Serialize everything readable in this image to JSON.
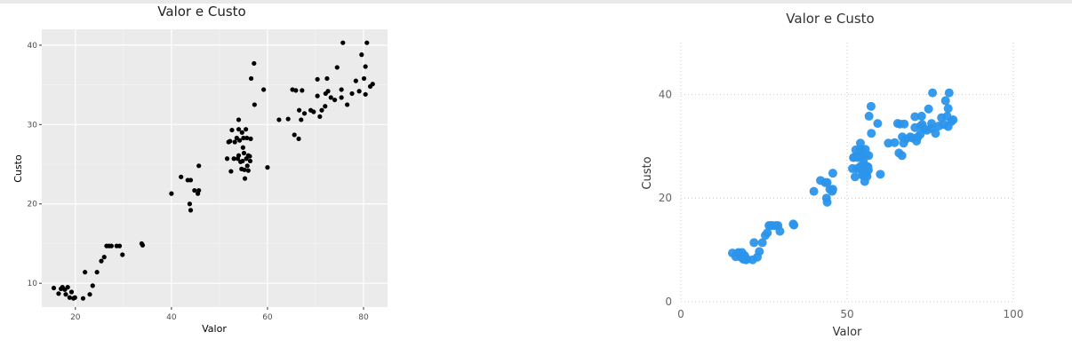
{
  "chart_data": [
    {
      "type": "scatter",
      "style": "ggplot",
      "title": "Valor e Custo",
      "xlabel": "Valor",
      "ylabel": "Custo",
      "xlim": [
        13,
        85
      ],
      "ylim": [
        7,
        42
      ],
      "xticks": [
        20,
        40,
        60,
        80
      ],
      "yticks": [
        10,
        20,
        30,
        40
      ],
      "grid": true,
      "point_color": "#000000",
      "panel_color": "#ebebeb",
      "points": [
        [
          15.5,
          9.4
        ],
        [
          16.5,
          8.7
        ],
        [
          17,
          9.3
        ],
        [
          17.3,
          9.5
        ],
        [
          17.8,
          9.2
        ],
        [
          18,
          8.6
        ],
        [
          18.4,
          9.5
        ],
        [
          18.8,
          8.2
        ],
        [
          19.2,
          8.9
        ],
        [
          19.6,
          8.1
        ],
        [
          19.9,
          8.2
        ],
        [
          21.6,
          8.1
        ],
        [
          22,
          11.4
        ],
        [
          23,
          8.6
        ],
        [
          23.6,
          9.7
        ],
        [
          24.5,
          11.4
        ],
        [
          25.4,
          12.8
        ],
        [
          26,
          13.3
        ],
        [
          26.5,
          14.7
        ],
        [
          27,
          14.7
        ],
        [
          27.5,
          14.7
        ],
        [
          28.6,
          14.7
        ],
        [
          29.2,
          14.7
        ],
        [
          29.8,
          13.6
        ],
        [
          33.8,
          15
        ],
        [
          34,
          14.8
        ],
        [
          40,
          21.3
        ],
        [
          42,
          23.4
        ],
        [
          43.4,
          23
        ],
        [
          43.8,
          20
        ],
        [
          44,
          23
        ],
        [
          44,
          19.2
        ],
        [
          44.8,
          21.7
        ],
        [
          45.5,
          21.3
        ],
        [
          45.7,
          21.7
        ],
        [
          45.7,
          24.8
        ],
        [
          51.6,
          25.7
        ],
        [
          51.9,
          27.8
        ],
        [
          52.2,
          27.9
        ],
        [
          52.4,
          24.1
        ],
        [
          52.6,
          29.3
        ],
        [
          53,
          25.7
        ],
        [
          53.2,
          27.8
        ],
        [
          53.6,
          28.3
        ],
        [
          53.8,
          25.7
        ],
        [
          54,
          29.4
        ],
        [
          54,
          30.6
        ],
        [
          54,
          26.1
        ],
        [
          54.2,
          28
        ],
        [
          54.4,
          25.3
        ],
        [
          54.6,
          24.4
        ],
        [
          54.7,
          29
        ],
        [
          54.8,
          25.4
        ],
        [
          54.9,
          27.1
        ],
        [
          55,
          28.3
        ],
        [
          55.1,
          26.4
        ],
        [
          55.2,
          24.3
        ],
        [
          55.3,
          23.2
        ],
        [
          55.5,
          29.4
        ],
        [
          55.6,
          25.7
        ],
        [
          55.7,
          28.3
        ],
        [
          55.8,
          24.8
        ],
        [
          56,
          24.2
        ],
        [
          56,
          26.1
        ],
        [
          56.3,
          26
        ],
        [
          56.4,
          25.4
        ],
        [
          56.5,
          28.2
        ],
        [
          56.6,
          35.8
        ],
        [
          57.2,
          37.7
        ],
        [
          57.3,
          32.5
        ],
        [
          59.2,
          34.4
        ],
        [
          60,
          24.6
        ],
        [
          62.4,
          30.6
        ],
        [
          64.3,
          30.7
        ],
        [
          65.2,
          34.4
        ],
        [
          65.6,
          28.7
        ],
        [
          65.9,
          34.3
        ],
        [
          66.5,
          28.2
        ],
        [
          66.6,
          31.8
        ],
        [
          67,
          30.6
        ],
        [
          67.2,
          34.3
        ],
        [
          67.7,
          31.4
        ],
        [
          69,
          31.8
        ],
        [
          69.6,
          31.6
        ],
        [
          70.4,
          33.6
        ],
        [
          70.4,
          35.7
        ],
        [
          70.9,
          31
        ],
        [
          71.3,
          31.8
        ],
        [
          72,
          32.3
        ],
        [
          72.1,
          33.9
        ],
        [
          72.4,
          35.8
        ],
        [
          72.6,
          34.2
        ],
        [
          73.2,
          33.4
        ],
        [
          74,
          33.1
        ],
        [
          74.5,
          37.2
        ],
        [
          75.4,
          33.4
        ],
        [
          75.4,
          34.4
        ],
        [
          75.7,
          40.3
        ],
        [
          76.6,
          32.5
        ],
        [
          77.6,
          33.9
        ],
        [
          78.4,
          35.5
        ],
        [
          79.1,
          34.2
        ],
        [
          79.6,
          38.8
        ],
        [
          80.1,
          35.8
        ],
        [
          80.4,
          37.3
        ],
        [
          80.4,
          33.8
        ],
        [
          80.7,
          40.3
        ],
        [
          81.4,
          34.8
        ],
        [
          81.9,
          35.1
        ]
      ]
    },
    {
      "type": "scatter",
      "style": "powerbi",
      "title": "Valor e Custo",
      "xlabel": "Valor",
      "ylabel": "Custo",
      "xlim": [
        0,
        100
      ],
      "ylim": [
        0,
        50
      ],
      "xticks": [
        0,
        50,
        100
      ],
      "yticks": [
        0,
        20,
        40
      ],
      "grid": true,
      "point_color": "#2b95ec",
      "points": [
        [
          15.5,
          9.4
        ],
        [
          16.5,
          8.7
        ],
        [
          17,
          9.3
        ],
        [
          17.3,
          9.5
        ],
        [
          17.8,
          9.2
        ],
        [
          18,
          8.6
        ],
        [
          18.4,
          9.5
        ],
        [
          18.8,
          8.2
        ],
        [
          19.2,
          8.9
        ],
        [
          19.6,
          8.1
        ],
        [
          19.9,
          8.2
        ],
        [
          21.6,
          8.1
        ],
        [
          22,
          11.4
        ],
        [
          23,
          8.6
        ],
        [
          23.6,
          9.7
        ],
        [
          24.5,
          11.4
        ],
        [
          25.4,
          12.8
        ],
        [
          26,
          13.3
        ],
        [
          26.5,
          14.7
        ],
        [
          27,
          14.7
        ],
        [
          27.5,
          14.7
        ],
        [
          28.6,
          14.7
        ],
        [
          29.2,
          14.7
        ],
        [
          29.8,
          13.6
        ],
        [
          33.8,
          15
        ],
        [
          34,
          14.8
        ],
        [
          40,
          21.3
        ],
        [
          42,
          23.4
        ],
        [
          43.4,
          23
        ],
        [
          43.8,
          20
        ],
        [
          44,
          23
        ],
        [
          44,
          19.2
        ],
        [
          44.8,
          21.7
        ],
        [
          45.5,
          21.3
        ],
        [
          45.7,
          21.7
        ],
        [
          45.7,
          24.8
        ],
        [
          51.6,
          25.7
        ],
        [
          51.9,
          27.8
        ],
        [
          52.2,
          27.9
        ],
        [
          52.4,
          24.1
        ],
        [
          52.6,
          29.3
        ],
        [
          53,
          25.7
        ],
        [
          53.2,
          27.8
        ],
        [
          53.6,
          28.3
        ],
        [
          53.8,
          25.7
        ],
        [
          54,
          29.4
        ],
        [
          54,
          30.6
        ],
        [
          54,
          26.1
        ],
        [
          54.2,
          28
        ],
        [
          54.4,
          25.3
        ],
        [
          54.6,
          24.4
        ],
        [
          54.7,
          29
        ],
        [
          54.8,
          25.4
        ],
        [
          54.9,
          27.1
        ],
        [
          55,
          28.3
        ],
        [
          55.1,
          26.4
        ],
        [
          55.2,
          24.3
        ],
        [
          55.3,
          23.2
        ],
        [
          55.5,
          29.4
        ],
        [
          55.6,
          25.7
        ],
        [
          55.7,
          28.3
        ],
        [
          55.8,
          24.8
        ],
        [
          56,
          24.2
        ],
        [
          56,
          26.1
        ],
        [
          56.3,
          26
        ],
        [
          56.4,
          25.4
        ],
        [
          56.5,
          28.2
        ],
        [
          56.6,
          35.8
        ],
        [
          57.2,
          37.7
        ],
        [
          57.3,
          32.5
        ],
        [
          59.2,
          34.4
        ],
        [
          60,
          24.6
        ],
        [
          62.4,
          30.6
        ],
        [
          64.3,
          30.7
        ],
        [
          65.2,
          34.4
        ],
        [
          65.6,
          28.7
        ],
        [
          65.9,
          34.3
        ],
        [
          66.5,
          28.2
        ],
        [
          66.6,
          31.8
        ],
        [
          67,
          30.6
        ],
        [
          67.2,
          34.3
        ],
        [
          67.7,
          31.4
        ],
        [
          69,
          31.8
        ],
        [
          69.6,
          31.6
        ],
        [
          70.4,
          33.6
        ],
        [
          70.4,
          35.7
        ],
        [
          70.9,
          31
        ],
        [
          71.3,
          31.8
        ],
        [
          72,
          32.3
        ],
        [
          72.1,
          33.9
        ],
        [
          72.4,
          35.8
        ],
        [
          72.6,
          34.2
        ],
        [
          73.2,
          33.4
        ],
        [
          74,
          33.1
        ],
        [
          74.5,
          37.2
        ],
        [
          75.4,
          33.4
        ],
        [
          75.4,
          34.4
        ],
        [
          75.7,
          40.3
        ],
        [
          76.6,
          32.5
        ],
        [
          77.6,
          33.9
        ],
        [
          78.4,
          35.5
        ],
        [
          79.1,
          34.2
        ],
        [
          79.6,
          38.8
        ],
        [
          80.1,
          35.8
        ],
        [
          80.4,
          37.3
        ],
        [
          80.4,
          33.8
        ],
        [
          80.7,
          40.3
        ],
        [
          81.4,
          34.8
        ],
        [
          81.9,
          35.1
        ]
      ]
    }
  ]
}
